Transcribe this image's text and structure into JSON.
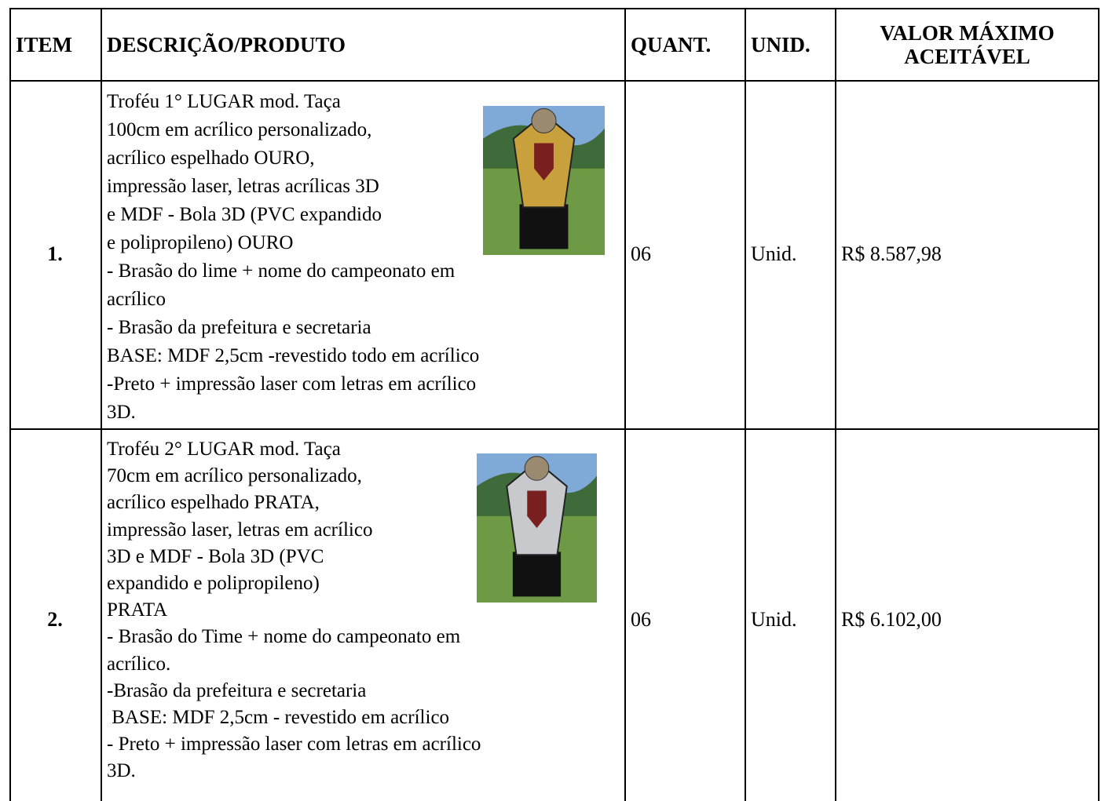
{
  "table": {
    "headers": [
      "ITEM",
      "DESCRIÇÃO/PRODUTO",
      "QUANT.",
      "UNID.",
      "VALOR MÁXIMO ACEITÁVEL"
    ],
    "rows": [
      {
        "item": "1.",
        "description": [
          "Troféu 1° LUGAR mod. Taça",
          "100cm em acrílico personalizado,",
          "acrílico espelhado OURO,",
          "impressão laser, letras acrílicas 3D",
          "e MDF - Bola 3D (PVC expandido",
          "e polipropileno) OURO",
          "- Brasão do lime + nome do campeonato em",
          "acrílico",
          "- Brasão da prefeitura e secretaria",
          "BASE: MDF 2,5cm -revestido todo em acrílico",
          "-Preto + impressão laser com letras em acrílico",
          "3D."
        ],
        "quantity": "06",
        "unit": "Unid.",
        "max_value": "R$ 8.587,98"
      },
      {
        "item": "2.",
        "description": [
          "Troféu 2° LUGAR mod. Taça",
          "70cm em acrílico personalizado,",
          "acrílico espelhado PRATA,",
          "impressão laser, letras em acrílico",
          "3D e MDF - Bola 3D (PVC",
          "expandido e polipropileno)",
          "PRATA",
          "- Brasão do Time + nome do campeonato em",
          "acrílico.",
          "-Brasão da prefeitura e secretaria",
          " BASE: MDF 2,5cm - revestido em acrílico",
          "- Preto + impressão laser com letras em acrílico",
          "3D."
        ],
        "quantity": "06",
        "unit": "Unid.",
        "max_value": "R$ 6.102,00"
      }
    ]
  }
}
